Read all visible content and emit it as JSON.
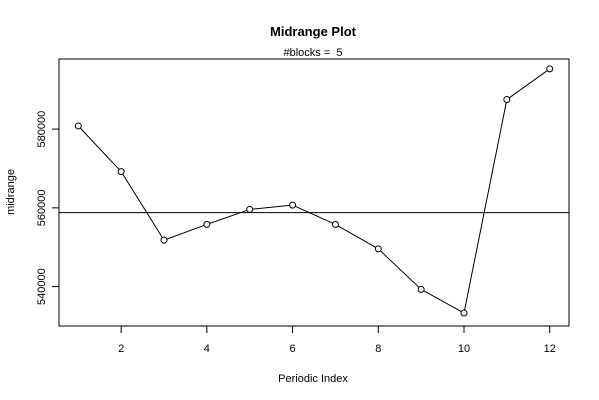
{
  "chart_data": {
    "type": "line",
    "title": "Midrange Plot",
    "subtitle": "#blocks =  5",
    "xlabel": "Periodic Index",
    "ylabel": "midrange",
    "x": [
      1,
      2,
      3,
      4,
      5,
      6,
      7,
      8,
      9,
      10,
      11,
      12
    ],
    "series": [
      {
        "values": [
          580800,
          569200,
          551800,
          555800,
          559600,
          560700,
          555800,
          549600,
          539300,
          533300,
          587500,
          595300
        ],
        "marker": "open-circle",
        "line": "solid"
      }
    ],
    "reference_line": {
      "orientation": "horizontal",
      "value": 558800
    },
    "xlim": [
      0.55,
      12.45
    ],
    "ylim": [
      530000,
      597800
    ],
    "x_ticks": [
      2,
      4,
      6,
      8,
      10,
      12
    ],
    "y_ticks": [
      540000,
      560000,
      580000
    ],
    "x_tick_labels": [
      "2",
      "4",
      "6",
      "8",
      "10",
      "12"
    ],
    "y_tick_labels": [
      "540000",
      "560000",
      "580000"
    ],
    "grid": false,
    "legend": "none",
    "colors": {
      "line": "#000000",
      "marker_fill": "#ffffff",
      "background": "#ffffff"
    }
  }
}
